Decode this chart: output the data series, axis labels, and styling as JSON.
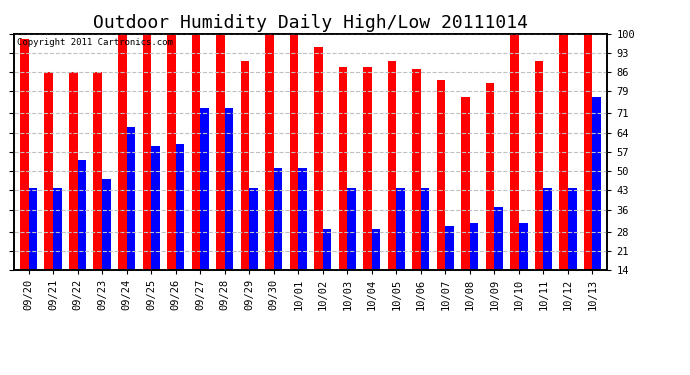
{
  "title": "Outdoor Humidity Daily High/Low 20111014",
  "copyright_text": "Copyright 2011 Cartronics.com",
  "dates": [
    "09/20",
    "09/21",
    "09/22",
    "09/23",
    "09/24",
    "09/25",
    "09/26",
    "09/27",
    "09/28",
    "09/29",
    "09/30",
    "10/01",
    "10/02",
    "10/03",
    "10/04",
    "10/05",
    "10/06",
    "10/07",
    "10/08",
    "10/09",
    "10/10",
    "10/11",
    "10/12",
    "10/13"
  ],
  "highs": [
    98,
    86,
    86,
    86,
    100,
    100,
    100,
    100,
    100,
    90,
    100,
    100,
    95,
    88,
    88,
    90,
    87,
    83,
    77,
    82,
    100,
    90,
    100,
    100
  ],
  "lows": [
    44,
    44,
    54,
    47,
    66,
    59,
    60,
    73,
    73,
    44,
    51,
    51,
    29,
    44,
    29,
    44,
    44,
    30,
    31,
    37,
    31,
    44,
    44,
    77
  ],
  "bar_color_high": "#FF0000",
  "bar_color_low": "#0000FF",
  "bg_color": "#FFFFFF",
  "plot_bg_color": "#FFFFFF",
  "grid_color": "#C0C0C0",
  "yticks": [
    14,
    21,
    28,
    36,
    43,
    50,
    57,
    64,
    71,
    79,
    86,
    93,
    100
  ],
  "ymin": 14,
  "ymax": 100,
  "title_fontsize": 13,
  "tick_fontsize": 7.5,
  "copyright_fontsize": 6.5,
  "bar_width": 0.35
}
